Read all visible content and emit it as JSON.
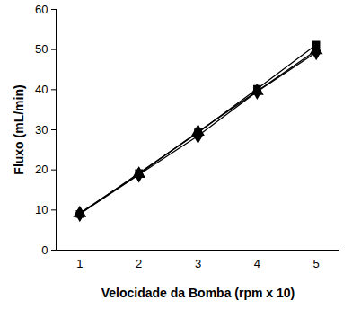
{
  "chart_data": {
    "type": "line",
    "xlabel": "Velocidade da Bomba (rpm x 10)",
    "ylabel": "Fluxo (mL/min)",
    "x": [
      1,
      2,
      3,
      4,
      5
    ],
    "series": [
      {
        "color": "#000000",
        "marker": "diamond",
        "values": [
          9.0,
          18.8,
          28.5,
          39.5,
          49.3
        ]
      },
      {
        "color": "#000000",
        "marker": "square",
        "values": [
          9.0,
          19.2,
          29.3,
          40.2,
          51.2
        ]
      },
      {
        "color": "#000000",
        "marker": "triangle",
        "values": [
          9.2,
          19.0,
          29.5,
          39.6,
          49.8
        ]
      }
    ],
    "xlim": [
      0.6,
      5.4
    ],
    "xticks": [
      1,
      2,
      3,
      4,
      5
    ],
    "ylim": [
      0,
      60
    ],
    "yticks": [
      0,
      10,
      20,
      30,
      40,
      50,
      60
    ],
    "grid": false
  }
}
